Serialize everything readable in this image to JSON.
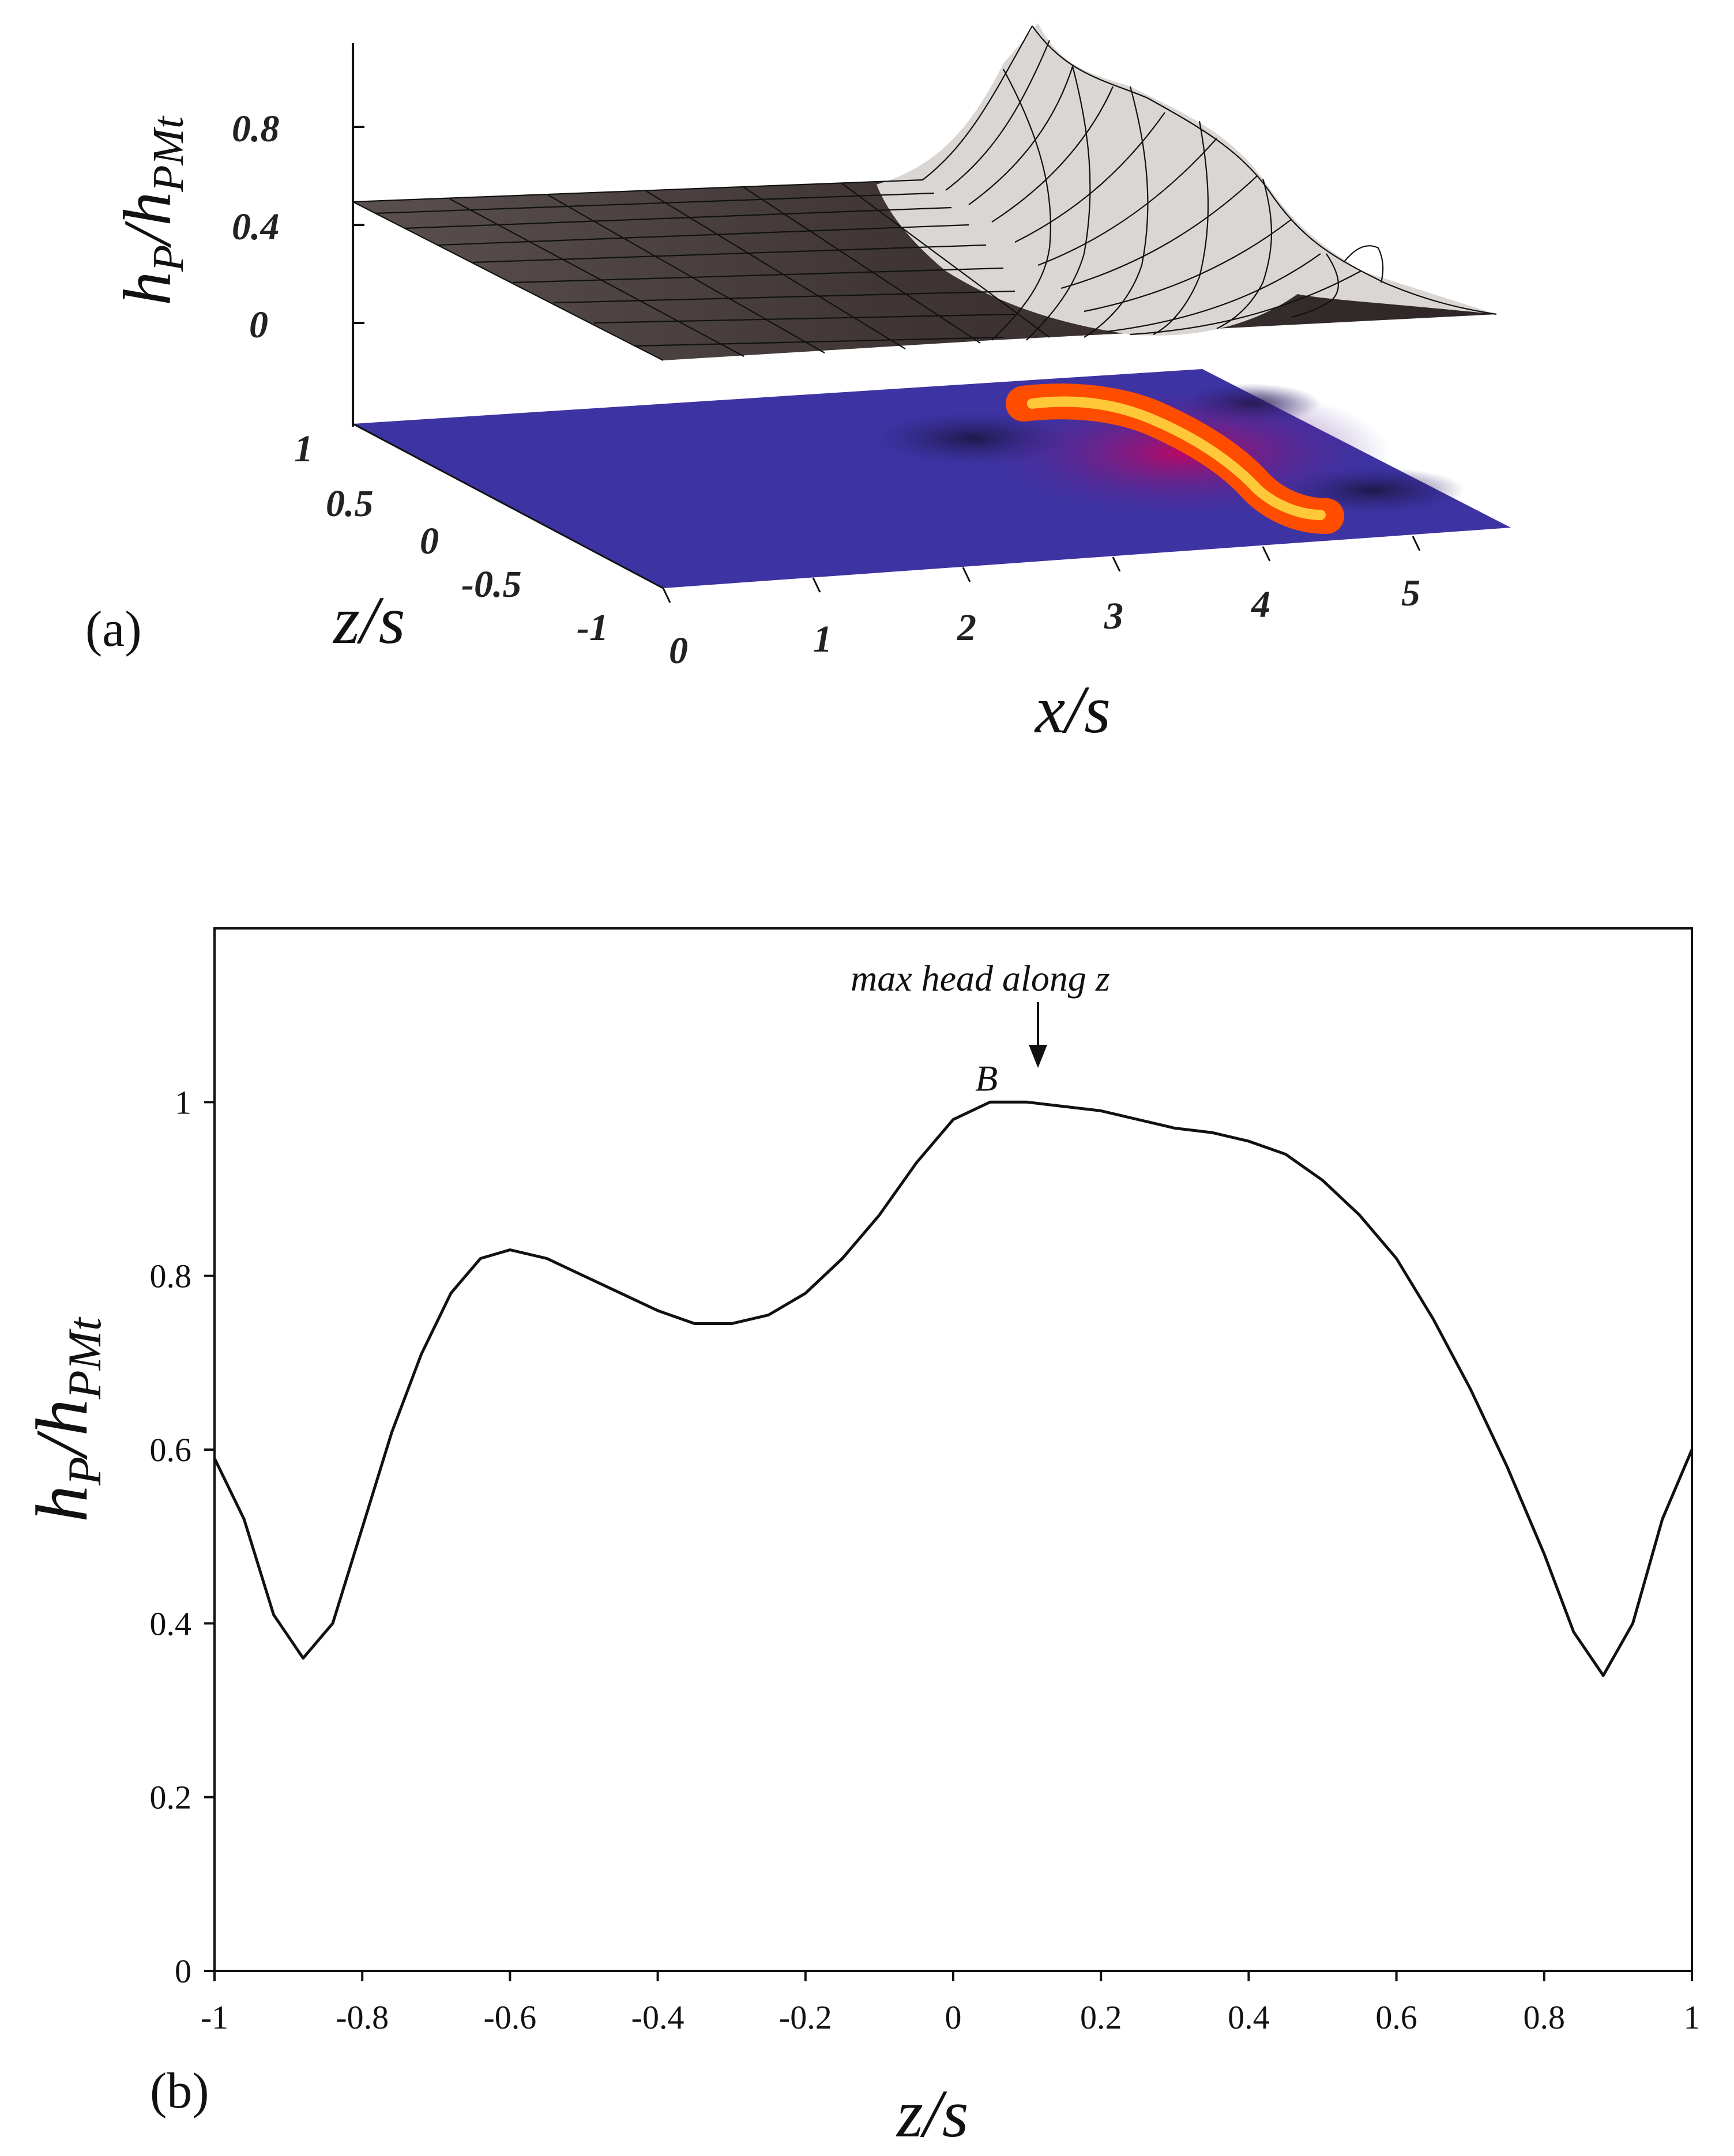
{
  "figure": {
    "panel_a_label": "(a)",
    "panel_b_label": "(b)"
  },
  "chart_data": [
    {
      "type": "surface",
      "panel": "(a)",
      "title": "",
      "ylabel": "h_P/h_PMt",
      "ylabel_main": "h",
      "ylabel_sub1": "P",
      "ylabel_mid": "/h",
      "ylabel_sub2": "PMt",
      "xlabel": "x/s",
      "zlabel": "z/s",
      "y_ticks": [
        "0",
        "0.4",
        "0.8"
      ],
      "x_ticks": [
        "0",
        "1",
        "2",
        "3",
        "4",
        "5"
      ],
      "z_ticks": [
        "1",
        "0.5",
        "0",
        "-0.5",
        "-1"
      ],
      "x_range": [
        0,
        5.8
      ],
      "z_range": [
        -1,
        1
      ],
      "y_range": [
        0,
        1
      ],
      "projection": "filled contour map (blue low, red/yellow high) below 3D wireframe surface",
      "peak_ridge_x_range": [
        2.7,
        4.3
      ],
      "base_level": 0.45
    },
    {
      "type": "line",
      "panel": "(b)",
      "title": "",
      "xlabel": "z/s",
      "ylabel": "h_P/h_PMt",
      "ylabel_main": "h",
      "ylabel_sub1": "P",
      "ylabel_mid": "/h",
      "ylabel_sub2": "PMt",
      "xlim": [
        -1,
        1
      ],
      "ylim": [
        0,
        1.2
      ],
      "x_ticks": [
        "-1",
        "-0.8",
        "-0.6",
        "-0.4",
        "-0.2",
        "0",
        "0.2",
        "0.4",
        "0.6",
        "0.8",
        "1"
      ],
      "y_ticks": [
        "0",
        "0.2",
        "0.4",
        "0.6",
        "0.8",
        "1"
      ],
      "annotation": "max head along z",
      "point_label": "B",
      "point_label_at": [
        0.1,
        1.0
      ],
      "series": [
        {
          "name": "h_P/h_PMt",
          "x": [
            -1.0,
            -0.96,
            -0.92,
            -0.88,
            -0.84,
            -0.8,
            -0.76,
            -0.72,
            -0.68,
            -0.64,
            -0.6,
            -0.55,
            -0.5,
            -0.45,
            -0.4,
            -0.35,
            -0.3,
            -0.25,
            -0.2,
            -0.15,
            -0.1,
            -0.05,
            0.0,
            0.05,
            0.1,
            0.15,
            0.2,
            0.25,
            0.3,
            0.35,
            0.4,
            0.45,
            0.5,
            0.55,
            0.6,
            0.65,
            0.7,
            0.75,
            0.8,
            0.84,
            0.88,
            0.92,
            0.96,
            1.0
          ],
          "y": [
            0.59,
            0.52,
            0.41,
            0.36,
            0.4,
            0.51,
            0.62,
            0.71,
            0.78,
            0.82,
            0.83,
            0.82,
            0.8,
            0.78,
            0.76,
            0.745,
            0.745,
            0.755,
            0.78,
            0.82,
            0.87,
            0.93,
            0.98,
            1.0,
            1.0,
            0.995,
            0.99,
            0.98,
            0.97,
            0.965,
            0.955,
            0.94,
            0.91,
            0.87,
            0.82,
            0.75,
            0.67,
            0.58,
            0.48,
            0.39,
            0.34,
            0.4,
            0.52,
            0.6
          ]
        }
      ]
    }
  ]
}
